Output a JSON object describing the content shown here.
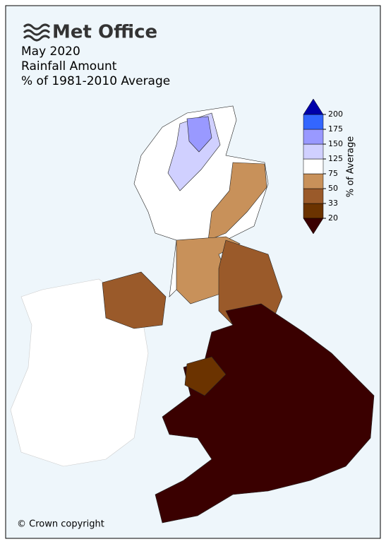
{
  "header": {
    "brand": "Met Office",
    "title_lines": [
      "May 2020",
      "Rainfall Amount",
      "% of 1981-2010 Average"
    ]
  },
  "legend": {
    "label": "% of Average",
    "ticks": [
      20,
      33,
      50,
      75,
      125,
      150,
      175,
      200
    ],
    "colors": [
      "#3a0000",
      "#6b3300",
      "#9a5a2a",
      "#c8915a",
      "#ffffff",
      "#d0d0ff",
      "#9999ff",
      "#3366ff",
      "#0000aa"
    ]
  },
  "footer": {
    "copyright": "© Crown copyright"
  }
}
